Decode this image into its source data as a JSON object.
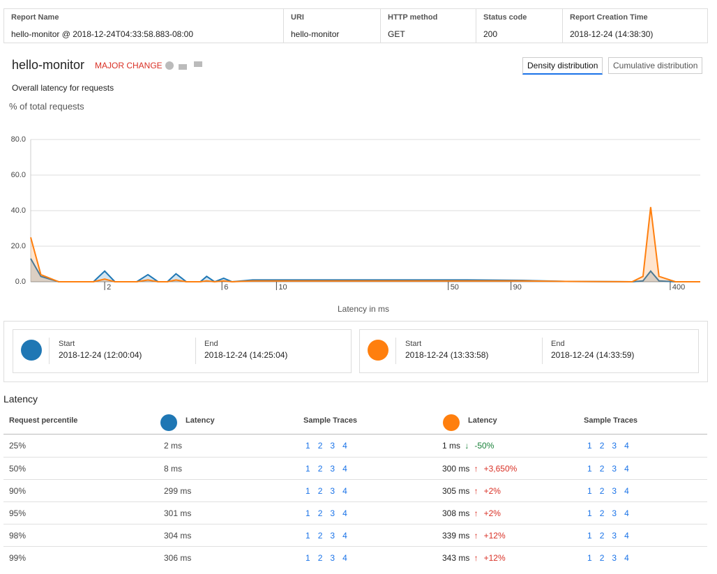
{
  "report": {
    "columns": [
      {
        "label": "Report Name",
        "value": "hello-monitor @ 2018-12-24T04:33:58.883-08:00"
      },
      {
        "label": "URI",
        "value": "hello-monitor"
      },
      {
        "label": "HTTP method",
        "value": "GET"
      },
      {
        "label": "Status code",
        "value": "200"
      },
      {
        "label": "Report Creation Time",
        "value": "2018-12-24 (14:38:30)"
      }
    ]
  },
  "title": "hello-monitor",
  "status": "MAJOR CHANGE",
  "tabs": [
    "Density distribution",
    "Cumulative distribution"
  ],
  "chart_data": {
    "type": "area",
    "title": "Overall latency for requests",
    "y_label": "% of total requests",
    "x_label": "Latency in ms",
    "x_scale": "log",
    "xlim": [
      1,
      530
    ],
    "xticks": [
      2,
      6,
      10,
      50,
      90,
      400
    ],
    "ylim": [
      0,
      80
    ],
    "yticks": [
      {
        "value": 0,
        "label": "0.0"
      },
      {
        "value": 20,
        "label": "20.0"
      },
      {
        "value": 40,
        "label": "40.0"
      },
      {
        "value": 60,
        "label": "60.0"
      },
      {
        "value": 80,
        "label": "80.0"
      }
    ],
    "grid": true,
    "x": [
      1,
      1.1,
      1.3,
      1.8,
      2,
      2.2,
      2.7,
      3,
      3.3,
      3.6,
      3.9,
      4.3,
      4.9,
      5.2,
      5.6,
      6.1,
      6.6,
      8,
      10,
      15,
      30,
      60,
      100,
      150,
      280,
      310,
      333,
      360,
      420,
      530
    ],
    "series": [
      {
        "color": "#1f77b4",
        "values": [
          13,
          3,
          0,
          0,
          6,
          0,
          0,
          4,
          0,
          0,
          4.5,
          0,
          0,
          3,
          0,
          2,
          0,
          1,
          1,
          1,
          1,
          1,
          0.8,
          0.2,
          0,
          0.5,
          6,
          0.5,
          0,
          0
        ]
      },
      {
        "color": "#ff7f0e",
        "values": [
          25,
          4,
          0,
          0,
          1.5,
          0,
          0,
          1,
          0,
          0,
          1,
          0,
          0,
          0.5,
          0,
          0.5,
          0,
          0.5,
          0.5,
          0.5,
          0.5,
          0.5,
          0.5,
          0.2,
          0,
          3,
          42,
          3,
          0,
          0
        ]
      }
    ]
  },
  "ranges": [
    {
      "start_label": "Start",
      "start": "2018-12-24 (12:00:04)",
      "end_label": "End",
      "end": "2018-12-24 (14:25:04)"
    },
    {
      "start_label": "Start",
      "start": "2018-12-24 (13:33:58)",
      "end_label": "End",
      "end": "2018-12-24 (14:33:59)"
    }
  ],
  "latency": {
    "title": "Latency",
    "headers": [
      "Request percentile",
      "Latency",
      "Sample Traces",
      "Latency",
      "Sample Traces"
    ],
    "trace_links": [
      "1",
      "2",
      "3",
      "4"
    ],
    "rows": [
      {
        "percentile": "25%",
        "a": "2 ms",
        "b": "1 ms",
        "arrow": "↓",
        "change": "-50%",
        "direction": "down"
      },
      {
        "percentile": "50%",
        "a": "8 ms",
        "b": "300 ms",
        "arrow": "↑",
        "change": "+3,650%",
        "direction": "up"
      },
      {
        "percentile": "90%",
        "a": "299 ms",
        "b": "305 ms",
        "arrow": "↑",
        "change": "+2%",
        "direction": "up"
      },
      {
        "percentile": "95%",
        "a": "301 ms",
        "b": "308 ms",
        "arrow": "↑",
        "change": "+2%",
        "direction": "up"
      },
      {
        "percentile": "98%",
        "a": "304 ms",
        "b": "339 ms",
        "arrow": "↑",
        "change": "+12%",
        "direction": "up"
      },
      {
        "percentile": "99%",
        "a": "306 ms",
        "b": "343 ms",
        "arrow": "↑",
        "change": "+12%",
        "direction": "up"
      }
    ]
  }
}
